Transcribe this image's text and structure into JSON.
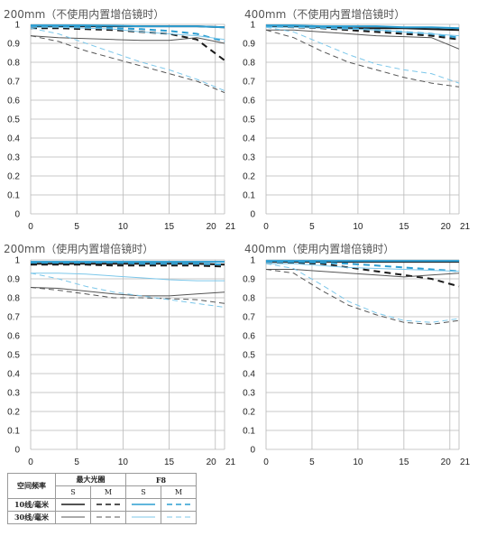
{
  "chart_data": [
    {
      "type": "line",
      "title": "200mm（不使用内置增倍镜时）",
      "xlabel": "",
      "ylabel": "",
      "xlim": [
        0,
        21
      ],
      "ylim": [
        0,
        1
      ],
      "xticks": [
        "0",
        "5",
        "10",
        "15",
        "20",
        "21"
      ],
      "yticks": [
        "0",
        "0.1",
        "0.2",
        "0.3",
        "0.4",
        "0.5",
        "0.6",
        "0.7",
        "0.8",
        "0.9",
        "1"
      ],
      "x": [
        0,
        3,
        6,
        9,
        12,
        15,
        18,
        21
      ],
      "series": [
        {
          "values": [
            0.99,
            0.99,
            0.99,
            0.99,
            0.99,
            0.99,
            0.99,
            0.985
          ],
          "color": "#1a1a1a",
          "style": "solid",
          "width": 2
        },
        {
          "values": [
            0.98,
            0.98,
            0.975,
            0.97,
            0.96,
            0.95,
            0.92,
            0.81
          ],
          "color": "#1a1a1a",
          "style": "dashed",
          "width": 2
        },
        {
          "values": [
            0.94,
            0.93,
            0.925,
            0.92,
            0.915,
            0.915,
            0.93,
            0.9
          ],
          "color": "#555555",
          "style": "solid",
          "width": 1
        },
        {
          "values": [
            0.94,
            0.91,
            0.86,
            0.82,
            0.78,
            0.74,
            0.7,
            0.64
          ],
          "color": "#555555",
          "style": "dashed",
          "width": 1
        },
        {
          "values": [
            0.995,
            0.995,
            0.995,
            0.993,
            0.99,
            0.99,
            0.99,
            0.985
          ],
          "color": "#2c9dd1",
          "style": "solid",
          "width": 2
        },
        {
          "values": [
            0.99,
            0.99,
            0.985,
            0.98,
            0.975,
            0.965,
            0.95,
            0.91
          ],
          "color": "#2c9dd1",
          "style": "dashed",
          "width": 2
        },
        {
          "values": [
            0.985,
            0.985,
            0.98,
            0.975,
            0.96,
            0.95,
            0.94,
            0.92
          ],
          "color": "#7cc7ea",
          "style": "solid",
          "width": 1
        },
        {
          "values": [
            0.98,
            0.95,
            0.9,
            0.85,
            0.8,
            0.76,
            0.71,
            0.65
          ],
          "color": "#7cc7ea",
          "style": "dashed",
          "width": 1
        }
      ]
    },
    {
      "type": "line",
      "title": "400mm（不使用内置增倍镜时）",
      "xlabel": "",
      "ylabel": "",
      "xlim": [
        0,
        21
      ],
      "ylim": [
        0,
        1
      ],
      "xticks": [
        "0",
        "5",
        "10",
        "15",
        "20",
        "21"
      ],
      "yticks": [
        "0",
        "0.1",
        "0.2",
        "0.3",
        "0.4",
        "0.5",
        "0.6",
        "0.7",
        "0.8",
        "0.9",
        "1"
      ],
      "x": [
        0,
        3,
        6,
        9,
        12,
        15,
        18,
        21
      ],
      "series": [
        {
          "values": [
            0.99,
            0.99,
            0.985,
            0.98,
            0.98,
            0.98,
            0.975,
            0.97
          ],
          "color": "#1a1a1a",
          "style": "solid",
          "width": 2
        },
        {
          "values": [
            0.99,
            0.985,
            0.98,
            0.97,
            0.96,
            0.95,
            0.94,
            0.92
          ],
          "color": "#1a1a1a",
          "style": "dashed",
          "width": 2
        },
        {
          "values": [
            0.97,
            0.97,
            0.96,
            0.95,
            0.94,
            0.935,
            0.93,
            0.87
          ],
          "color": "#555555",
          "style": "solid",
          "width": 1
        },
        {
          "values": [
            0.97,
            0.93,
            0.86,
            0.8,
            0.76,
            0.72,
            0.69,
            0.67
          ],
          "color": "#555555",
          "style": "dashed",
          "width": 1
        },
        {
          "values": [
            0.995,
            0.995,
            0.99,
            0.99,
            0.99,
            0.985,
            0.985,
            0.98
          ],
          "color": "#2c9dd1",
          "style": "solid",
          "width": 2
        },
        {
          "values": [
            0.99,
            0.99,
            0.985,
            0.98,
            0.97,
            0.96,
            0.95,
            0.93
          ],
          "color": "#2c9dd1",
          "style": "dashed",
          "width": 2
        },
        {
          "values": [
            0.985,
            0.985,
            0.98,
            0.975,
            0.97,
            0.96,
            0.95,
            0.94
          ],
          "color": "#7cc7ea",
          "style": "solid",
          "width": 1
        },
        {
          "values": [
            0.985,
            0.96,
            0.9,
            0.84,
            0.79,
            0.76,
            0.74,
            0.69
          ],
          "color": "#7cc7ea",
          "style": "dashed",
          "width": 1
        }
      ]
    },
    {
      "type": "line",
      "title": "200mm（使用内置增倍镜时）",
      "xlabel": "",
      "ylabel": "",
      "xlim": [
        0,
        21
      ],
      "ylim": [
        0,
        1
      ],
      "xticks": [
        "0",
        "5",
        "10",
        "15",
        "20",
        "21"
      ],
      "yticks": [
        "0",
        "0.1",
        "0.2",
        "0.3",
        "0.4",
        "0.5",
        "0.6",
        "0.7",
        "0.8",
        "0.9",
        "1"
      ],
      "x": [
        0,
        3,
        6,
        9,
        12,
        15,
        18,
        21
      ],
      "series": [
        {
          "values": [
            0.98,
            0.98,
            0.98,
            0.98,
            0.98,
            0.98,
            0.98,
            0.975
          ],
          "color": "#1a1a1a",
          "style": "solid",
          "width": 2
        },
        {
          "values": [
            0.975,
            0.975,
            0.975,
            0.97,
            0.97,
            0.97,
            0.97,
            0.965
          ],
          "color": "#1a1a1a",
          "style": "dashed",
          "width": 2
        },
        {
          "values": [
            0.855,
            0.85,
            0.835,
            0.82,
            0.81,
            0.81,
            0.82,
            0.83
          ],
          "color": "#555555",
          "style": "solid",
          "width": 1
        },
        {
          "values": [
            0.855,
            0.84,
            0.82,
            0.8,
            0.8,
            0.795,
            0.79,
            0.77
          ],
          "color": "#555555",
          "style": "dashed",
          "width": 1
        },
        {
          "values": [
            0.99,
            0.99,
            0.99,
            0.99,
            0.99,
            0.99,
            0.99,
            0.99
          ],
          "color": "#2c9dd1",
          "style": "solid",
          "width": 2
        },
        {
          "values": [
            0.985,
            0.985,
            0.985,
            0.985,
            0.98,
            0.98,
            0.98,
            0.975
          ],
          "color": "#2c9dd1",
          "style": "dashed",
          "width": 2
        },
        {
          "values": [
            0.93,
            0.93,
            0.925,
            0.915,
            0.905,
            0.895,
            0.89,
            0.89
          ],
          "color": "#7cc7ea",
          "style": "solid",
          "width": 1
        },
        {
          "values": [
            0.93,
            0.9,
            0.86,
            0.83,
            0.81,
            0.79,
            0.77,
            0.75
          ],
          "color": "#7cc7ea",
          "style": "dashed",
          "width": 1
        }
      ]
    },
    {
      "type": "line",
      "title": "400mm（使用内置增倍镜时）",
      "xlabel": "",
      "ylabel": "",
      "xlim": [
        0,
        21
      ],
      "ylim": [
        0,
        1
      ],
      "xticks": [
        "0",
        "5",
        "10",
        "15",
        "20",
        "21"
      ],
      "yticks": [
        "0",
        "0.1",
        "0.2",
        "0.3",
        "0.4",
        "0.5",
        "0.6",
        "0.7",
        "0.8",
        "0.9",
        "1"
      ],
      "x": [
        0,
        3,
        6,
        9,
        12,
        15,
        18,
        21
      ],
      "series": [
        {
          "values": [
            0.99,
            0.99,
            0.99,
            0.99,
            0.99,
            0.99,
            0.99,
            0.99
          ],
          "color": "#1a1a1a",
          "style": "solid",
          "width": 2
        },
        {
          "values": [
            0.99,
            0.985,
            0.98,
            0.96,
            0.94,
            0.92,
            0.9,
            0.86
          ],
          "color": "#1a1a1a",
          "style": "dashed",
          "width": 2
        },
        {
          "values": [
            0.95,
            0.95,
            0.94,
            0.93,
            0.92,
            0.91,
            0.92,
            0.93
          ],
          "color": "#555555",
          "style": "solid",
          "width": 1
        },
        {
          "values": [
            0.95,
            0.93,
            0.84,
            0.76,
            0.71,
            0.67,
            0.66,
            0.68
          ],
          "color": "#555555",
          "style": "dashed",
          "width": 1
        },
        {
          "values": [
            0.995,
            0.995,
            0.995,
            0.995,
            0.995,
            0.995,
            0.995,
            0.995
          ],
          "color": "#2c9dd1",
          "style": "solid",
          "width": 2
        },
        {
          "values": [
            0.99,
            0.99,
            0.985,
            0.98,
            0.97,
            0.96,
            0.95,
            0.94
          ],
          "color": "#2c9dd1",
          "style": "dashed",
          "width": 2
        },
        {
          "values": [
            0.98,
            0.98,
            0.97,
            0.96,
            0.955,
            0.95,
            0.945,
            0.94
          ],
          "color": "#7cc7ea",
          "style": "solid",
          "width": 1
        },
        {
          "values": [
            0.98,
            0.955,
            0.87,
            0.78,
            0.72,
            0.68,
            0.67,
            0.69
          ],
          "color": "#7cc7ea",
          "style": "dashed",
          "width": 1
        }
      ]
    }
  ],
  "legend": {
    "row_header": "空间频率",
    "group_max_aperture": "最大光圈",
    "group_f8": "F8",
    "sub_s": "S",
    "sub_m": "M",
    "row_10": "10线/毫米",
    "row_30": "30线/毫米"
  }
}
